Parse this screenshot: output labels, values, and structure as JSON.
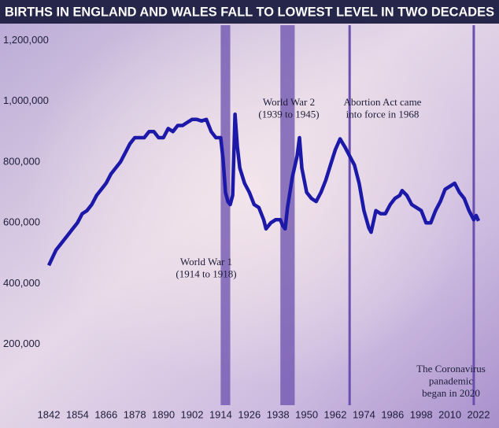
{
  "chart_data": {
    "type": "line",
    "title": "BIRTHS IN ENGLAND AND WALES FALL TO LOWEST LEVEL IN TWO DECADES",
    "x": [
      1842,
      1845,
      1847,
      1850,
      1852,
      1854,
      1856,
      1858,
      1860,
      1862,
      1864,
      1866,
      1868,
      1870,
      1872,
      1874,
      1876,
      1878,
      1880,
      1882,
      1884,
      1886,
      1888,
      1890,
      1892,
      1894,
      1896,
      1898,
      1900,
      1902,
      1904,
      1906,
      1908,
      1910,
      1912,
      1914,
      1915,
      1916,
      1917,
      1918,
      1919,
      1920,
      1921,
      1922,
      1924,
      1926,
      1928,
      1930,
      1932,
      1933,
      1935,
      1937,
      1939,
      1940,
      1941,
      1942,
      1944,
      1946,
      1947,
      1948,
      1950,
      1952,
      1954,
      1956,
      1958,
      1960,
      1962,
      1964,
      1966,
      1968,
      1970,
      1972,
      1974,
      1976,
      1977,
      1979,
      1981,
      1983,
      1985,
      1987,
      1989,
      1990,
      1992,
      1994,
      1996,
      1998,
      2000,
      2002,
      2004,
      2006,
      2008,
      2010,
      2012,
      2014,
      2016,
      2018,
      2020,
      2021,
      2022
    ],
    "series": [
      {
        "name": "Births",
        "color": "#1c18a8",
        "values": [
          460000,
          510000,
          530000,
          560000,
          580000,
          600000,
          630000,
          640000,
          660000,
          690000,
          710000,
          730000,
          760000,
          780000,
          800000,
          830000,
          860000,
          880000,
          880000,
          880000,
          900000,
          900000,
          880000,
          880000,
          910000,
          900000,
          920000,
          920000,
          930000,
          940000,
          940000,
          935000,
          940000,
          900000,
          880000,
          880000,
          810000,
          700000,
          670000,
          660000,
          690000,
          957000,
          850000,
          780000,
          730000,
          700000,
          660000,
          650000,
          610000,
          580000,
          600000,
          610000,
          610000,
          590000,
          580000,
          650000,
          750000,
          820000,
          880000,
          780000,
          700000,
          680000,
          670000,
          700000,
          740000,
          790000,
          840000,
          876000,
          850000,
          820000,
          790000,
          730000,
          640000,
          584000,
          569000,
          640000,
          630000,
          630000,
          660000,
          680000,
          690000,
          706000,
          690000,
          660000,
          650000,
          640000,
          600000,
          600000,
          640000,
          670000,
          710000,
          720000,
          730000,
          700000,
          680000,
          640000,
          610000,
          624000,
          606000
        ]
      }
    ],
    "xlim": [
      1836,
      2028
    ],
    "xticks": [
      1842,
      1854,
      1866,
      1878,
      1890,
      1902,
      1914,
      1926,
      1938,
      1950,
      1962,
      1974,
      1986,
      1998,
      2010,
      2022
    ],
    "ylim": [
      0,
      1250000
    ],
    "yticks": [
      {
        "value": 200000,
        "label": "200,000"
      },
      {
        "value": 400000,
        "label": "400,000"
      },
      {
        "value": 600000,
        "label": "600,000"
      },
      {
        "value": 800000,
        "label": "800,000"
      },
      {
        "value": 1000000,
        "label": "1,000,000"
      },
      {
        "value": 1200000,
        "label": "1,200,000"
      }
    ],
    "bands": [
      {
        "start": 1914,
        "end": 1918
      },
      {
        "start": 1939,
        "end": 1945
      }
    ],
    "markers": [
      1968,
      2020
    ],
    "annotations": [
      {
        "lines": [
          "World War 1",
          "(1914 to 1918)"
        ]
      },
      {
        "lines": [
          "World War 2",
          "(1939 to 1945)"
        ]
      },
      {
        "lines": [
          "Abortion Act came",
          "into force in 1968"
        ]
      },
      {
        "lines": [
          "The Coronavirus",
          "panademic",
          "began in 2020"
        ]
      }
    ]
  }
}
